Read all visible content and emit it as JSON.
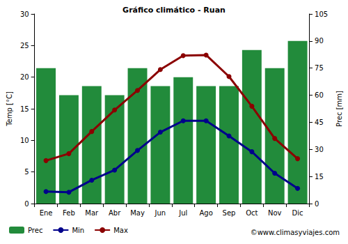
{
  "chart_data": {
    "type": "bar",
    "title": "Gráfico climático - Ruan",
    "y_label": "Temp [°C]",
    "y2_label": "Prec [mm]",
    "annotations": [
      "©www.climasyviajes.com"
    ],
    "categories": [
      "Ene",
      "Feb",
      "Mar",
      "Abr",
      "May",
      "Jun",
      "Jul",
      "Ago",
      "Sep",
      "Oct",
      "Nov",
      "Dic"
    ],
    "series": [
      {
        "name": "Prec",
        "type": "bar",
        "axis": "y2",
        "color": "#228b3b",
        "values": [
          75,
          60,
          65,
          60,
          75,
          65,
          70,
          65,
          65,
          85,
          75,
          90
        ]
      },
      {
        "name": "Min",
        "type": "line",
        "color": "#00008b",
        "marker": "circle",
        "values": [
          1.9,
          1.8,
          3.7,
          5.3,
          8.4,
          11.3,
          13.1,
          13.1,
          10.7,
          8.2,
          4.8,
          2.4
        ]
      },
      {
        "name": "Max",
        "type": "line",
        "color": "#8b0000",
        "marker": "circle",
        "values": [
          6.8,
          7.9,
          11.4,
          14.8,
          17.9,
          21.2,
          23.4,
          23.5,
          20.1,
          15.4,
          10.3,
          7.1
        ]
      }
    ],
    "ylim": [
      0,
      30
    ],
    "yticks": [
      0,
      5,
      10,
      15,
      20,
      25,
      30
    ],
    "y2lim": [
      0,
      105
    ],
    "y2ticks": [
      0,
      15,
      30,
      45,
      60,
      75,
      90,
      105
    ],
    "grid": false,
    "legend": "bottom"
  }
}
